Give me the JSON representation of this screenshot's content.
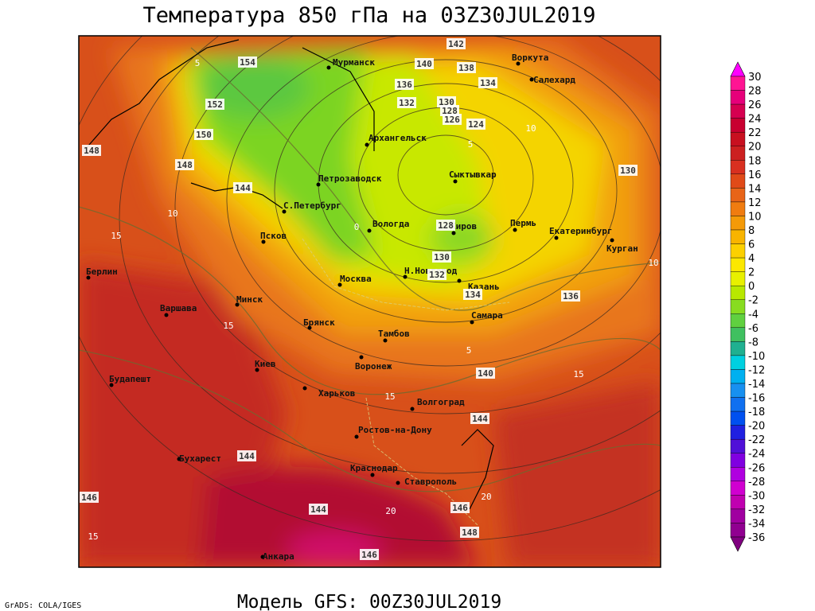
{
  "header": {
    "title": "Температура 850 гПа на 03Z30JUL2019"
  },
  "footer": {
    "model": "Модель GFS: 00Z30JUL2019",
    "credit": "GrADS: COLA/IGES"
  },
  "cities": [
    {
      "name": "Мурманск"
    },
    {
      "name": "Воркута"
    },
    {
      "name": "Салехард"
    },
    {
      "name": "Архангельск"
    },
    {
      "name": "Сыктывкар"
    },
    {
      "name": "Петрозаводск"
    },
    {
      "name": "С.Петербург"
    },
    {
      "name": "Вологда"
    },
    {
      "name": "Киров"
    },
    {
      "name": "Пермь"
    },
    {
      "name": "Екатеринбург"
    },
    {
      "name": "Курган"
    },
    {
      "name": "Псков"
    },
    {
      "name": "Н.Новгород"
    },
    {
      "name": "Казань"
    },
    {
      "name": "Москва"
    },
    {
      "name": "Берлин"
    },
    {
      "name": "Варшава"
    },
    {
      "name": "Минск"
    },
    {
      "name": "Брянск"
    },
    {
      "name": "Тамбов"
    },
    {
      "name": "Самара"
    },
    {
      "name": "Киев"
    },
    {
      "name": "Воронеж"
    },
    {
      "name": "Будапешт"
    },
    {
      "name": "Харьков"
    },
    {
      "name": "Волгоград"
    },
    {
      "name": "Ростов-на-Дону"
    },
    {
      "name": "Бухарест"
    },
    {
      "name": "Краснодар"
    },
    {
      "name": "Ставрополь"
    },
    {
      "name": "Анкара"
    }
  ],
  "height_labels": [
    154,
    152,
    150,
    148,
    148,
    144,
    142,
    140,
    138,
    136,
    134,
    132,
    130,
    128,
    126,
    124,
    130,
    128,
    130,
    132,
    134,
    136,
    140,
    144,
    144,
    146,
    144,
    146,
    148,
    146
  ],
  "isotherm_labels": [
    5,
    10,
    5,
    10,
    15,
    0,
    10,
    15,
    5,
    15,
    15,
    20,
    20,
    15
  ],
  "colorbar": {
    "levels": [
      30,
      28,
      26,
      24,
      22,
      20,
      18,
      16,
      14,
      12,
      10,
      8,
      6,
      4,
      2,
      0,
      -2,
      -4,
      -6,
      -8,
      -10,
      -12,
      -14,
      -16,
      -18,
      -20,
      -22,
      -24,
      -26,
      -28,
      -30,
      -32,
      -34,
      -36
    ],
    "colors": [
      "#ff00ff",
      "#ff1493",
      "#e6007a",
      "#d60050",
      "#c80030",
      "#c81020",
      "#cc2020",
      "#d83020",
      "#e04a18",
      "#e86418",
      "#f07c10",
      "#f49a08",
      "#f8b400",
      "#fcd000",
      "#fce800",
      "#e8f000",
      "#b8e800",
      "#88dc20",
      "#60d040",
      "#40c060",
      "#20b090",
      "#00d0e0",
      "#00b0f0",
      "#1890f0",
      "#1070f0",
      "#0050f0",
      "#2020e0",
      "#5010d8",
      "#8000e0",
      "#b000e0",
      "#d000d0",
      "#c000b0",
      "#a000a0",
      "#900090",
      "#800080"
    ]
  }
}
